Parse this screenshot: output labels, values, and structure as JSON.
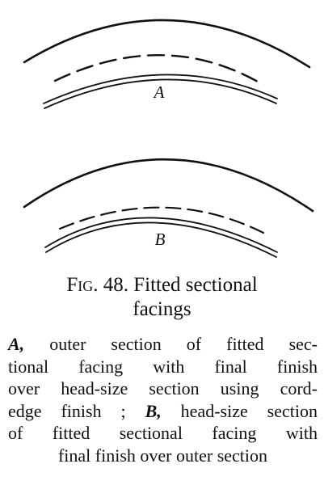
{
  "figure": {
    "label_a": "A",
    "label_b": "B"
  },
  "caption": {
    "fig_label": "Fig. 48.",
    "line1_rest": "Fitted sectional",
    "line2": "facings"
  },
  "description": {
    "lines": [
      {
        "lead": "A,",
        "text": " outer section of fitted sec-"
      },
      {
        "lead": "",
        "text": "tional facing with final finish"
      },
      {
        "lead": "",
        "text": "over head-size section using cord-"
      },
      {
        "lead": "",
        "text": "edge finish ; ",
        "lead2": "B,",
        "text2": " head-size section"
      },
      {
        "lead": "",
        "text": "of fitted sectional facing with"
      },
      {
        "lead": "",
        "text": "final finish over outer section"
      }
    ]
  }
}
